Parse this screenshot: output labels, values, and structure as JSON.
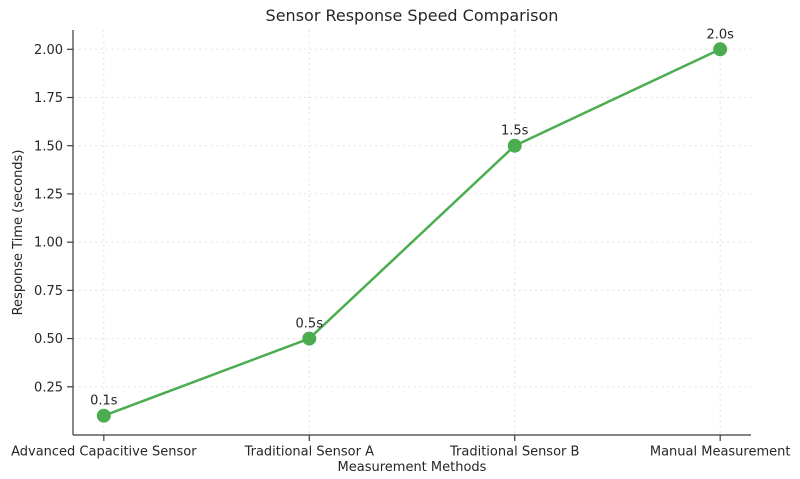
{
  "chart_data": {
    "type": "line",
    "title": "Sensor Response Speed Comparison",
    "xlabel": "Measurement Methods",
    "ylabel": "Response Time (seconds)",
    "categories": [
      "Advanced Capacitive Sensor",
      "Traditional Sensor A",
      "Traditional Sensor B",
      "Manual Measurement"
    ],
    "series": [
      {
        "name": "Response Time",
        "values": [
          0.1,
          0.5,
          1.5,
          2.0
        ]
      }
    ],
    "point_labels": [
      "0.1s",
      "0.5s",
      "1.5s",
      "2.0s"
    ],
    "yticks": [
      0.25,
      0.5,
      0.75,
      1.0,
      1.25,
      1.5,
      1.75,
      2.0
    ],
    "ytick_labels": [
      "0.25",
      "0.50",
      "0.75",
      "1.00",
      "1.25",
      "1.50",
      "1.75",
      "2.00"
    ],
    "ylim": [
      0,
      2.1
    ],
    "grid": true,
    "grid_style": "dotted",
    "legend": "none",
    "marker": "circle",
    "colors": {
      "line": "#4bad50",
      "marker": "#4bad50",
      "grid": "#e2e2e2",
      "spine": "#3a3a3a",
      "text": "#262626",
      "background": "#ffffff"
    }
  }
}
